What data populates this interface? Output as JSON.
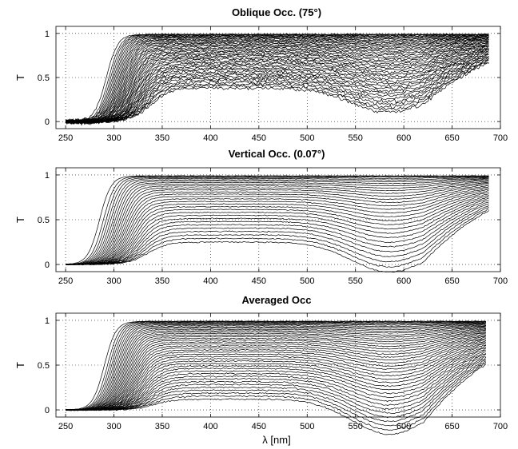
{
  "chart_data": [
    {
      "type": "line",
      "title": "Oblique Occ. (75°)",
      "xlabel": "",
      "ylabel": "T",
      "xlim": [
        240,
        700
      ],
      "ylim": [
        -0.08,
        1.08
      ],
      "xticks": [
        250,
        300,
        350,
        400,
        450,
        500,
        550,
        600,
        650,
        700
      ],
      "yticks": [
        0,
        0.5,
        1
      ],
      "grid": true,
      "series_count": 45,
      "x_range": [
        250,
        688
      ],
      "edge_nm": [
        292,
        338
      ],
      "plateau_high": 0.99,
      "plateau_low": 0.38,
      "noise": 0.018
    },
    {
      "type": "line",
      "title": "Vertical Occ. (0.07°)",
      "xlabel": "",
      "ylabel": "T",
      "xlim": [
        240,
        700
      ],
      "ylim": [
        -0.08,
        1.08
      ],
      "xticks": [
        250,
        300,
        350,
        400,
        450,
        500,
        550,
        600,
        650,
        700
      ],
      "yticks": [
        0,
        0.5,
        1
      ],
      "grid": true,
      "series_count": 30,
      "x_range": [
        250,
        688
      ],
      "edge_nm": [
        285,
        335
      ],
      "plateau_high": 0.99,
      "plateau_low": 0.25,
      "noise": 0.006
    },
    {
      "type": "line",
      "title": "Averaged Occ",
      "xlabel": "λ [nm]",
      "ylabel": "T",
      "xlim": [
        240,
        700
      ],
      "ylim": [
        -0.08,
        1.08
      ],
      "xticks": [
        250,
        300,
        350,
        400,
        450,
        500,
        550,
        600,
        650,
        700
      ],
      "yticks": [
        0,
        0.5,
        1
      ],
      "grid": true,
      "series_count": 42,
      "x_range": [
        250,
        685
      ],
      "edge_nm": [
        290,
        342
      ],
      "plateau_high": 0.99,
      "plateau_low": 0.12,
      "noise": 0.008
    }
  ]
}
